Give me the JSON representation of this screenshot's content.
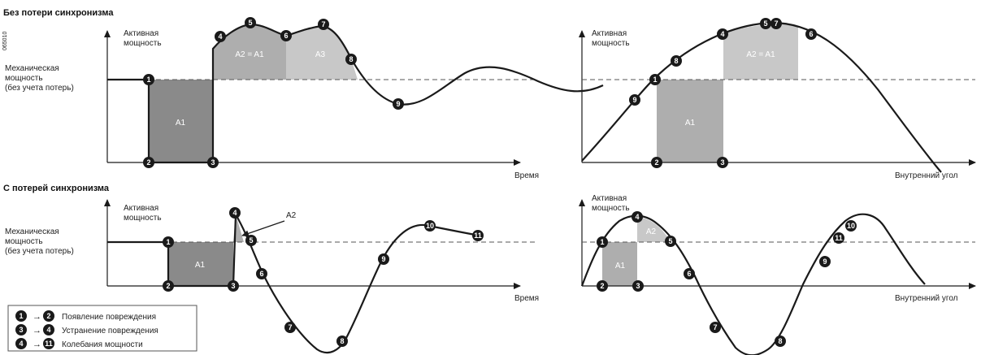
{
  "figure_id": "065010",
  "sections": {
    "top": {
      "title": "Без потери синхронизма"
    },
    "bottom": {
      "title": "С потерей синхронизма"
    }
  },
  "labels": {
    "active_power": [
      "Активная",
      "мощность"
    ],
    "mech_power": [
      "Механическая",
      "мощность",
      "(без учета потерь)"
    ],
    "time": "Время",
    "internal_angle": "Внутренний угол"
  },
  "areas": {
    "a1": "A1",
    "a2": "A2",
    "a2_eq_a1": "A2 = A1",
    "a3": "A3"
  },
  "points": {
    "p1": "1",
    "p2": "2",
    "p3": "3",
    "p4": "4",
    "p5": "5",
    "p6": "6",
    "p7": "7",
    "p8": "8",
    "p9": "9",
    "p10": "10",
    "p11": "11"
  },
  "legend": [
    {
      "from": "1",
      "to": "2",
      "text": "Появление повреждения"
    },
    {
      "from": "3",
      "to": "4",
      "text": "Устранение повреждения"
    },
    {
      "from": "4",
      "to": "11",
      "text": "Колебания мощности"
    }
  ],
  "colors": {
    "area_dark": "#8a8a8a",
    "area_mid": "#aeaeae",
    "area_light": "#c8c8c8",
    "badge": "#1a1a1a"
  }
}
